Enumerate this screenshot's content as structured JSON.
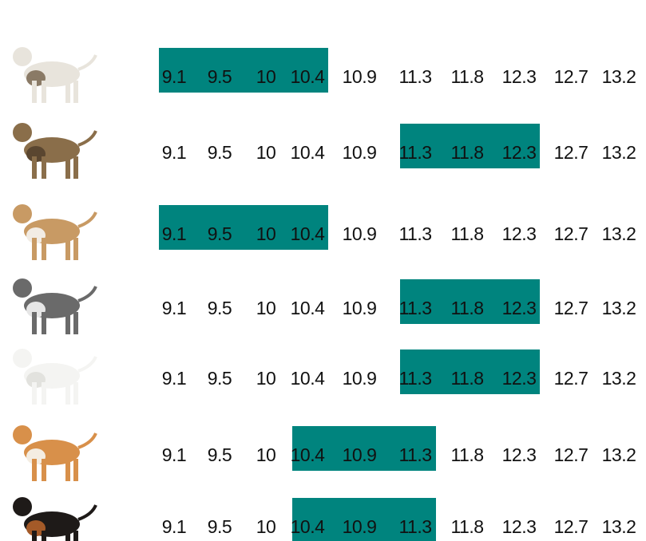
{
  "scale": [
    9.1,
    9.5,
    10,
    10.4,
    10.9,
    11.3,
    11.8,
    12.3,
    12.7,
    13.2
  ],
  "highlight_color": "#00847e",
  "rows": [
    {
      "highlight": [
        9.1,
        10.4
      ]
    },
    {
      "highlight": [
        11.3,
        12.3
      ]
    },
    {
      "highlight": [
        9.1,
        10.4
      ]
    },
    {
      "highlight": [
        11.3,
        12.3
      ]
    },
    {
      "highlight": [
        11.3,
        12.3
      ]
    },
    {
      "highlight": [
        10.4,
        11.3
      ]
    },
    {
      "highlight": [
        10.4,
        11.3
      ]
    }
  ]
}
